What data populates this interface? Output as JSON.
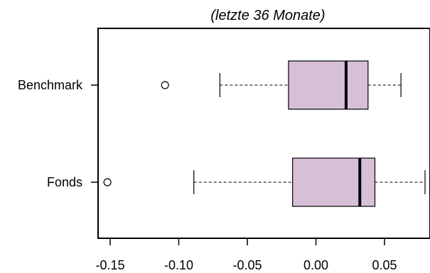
{
  "chart_data": {
    "type": "boxplot",
    "orientation": "horizontal",
    "title": "(letzte 36 Monate)",
    "xlabel": "",
    "ylabel": "",
    "xlim": [
      -0.16,
      0.085
    ],
    "x_ticks": [
      -0.15,
      -0.1,
      -0.05,
      0.0,
      0.05
    ],
    "x_tick_labels": [
      "-0.15",
      "-0.10",
      "-0.05",
      "0.00",
      "0.05"
    ],
    "categories": [
      "Benchmark",
      "Fonds"
    ],
    "series": [
      {
        "name": "Benchmark",
        "whisker_low": -0.07,
        "q1": -0.02,
        "median": 0.022,
        "q3": 0.038,
        "whisker_high": 0.062,
        "outliers": [
          -0.11
        ]
      },
      {
        "name": "Fonds",
        "whisker_low": -0.089,
        "q1": -0.017,
        "median": 0.032,
        "q3": 0.043,
        "whisker_high": 0.085,
        "outliers": [
          -0.152
        ]
      }
    ],
    "box_color": "#d8bfd8",
    "grid": false,
    "legend": "none"
  }
}
